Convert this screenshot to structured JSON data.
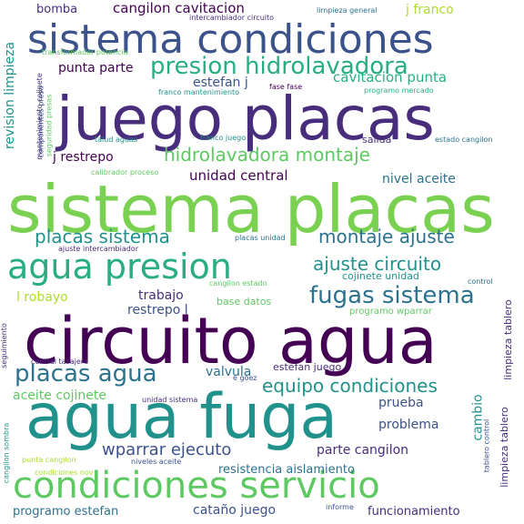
{
  "colors": {
    "dark_purple": "#440154",
    "indigo": "#472d7b",
    "blue": "#3b528b",
    "slate": "#2c728e",
    "teal": "#21918c",
    "green": "#28ae80",
    "lime": "#5ec962",
    "yellow_green": "#addc30",
    "yellow": "#fde725"
  },
  "words": {
    "w01": "circuito agua",
    "w02": "agua fuga",
    "w03": "sistema placas",
    "w04": "juego placas",
    "w05": "sistema condiciones",
    "w06": "condiciones servicio",
    "w07": "agua presion",
    "w08": "presion hidrolavadora",
    "w09": "fugas sistema",
    "w10": "placas agua",
    "w11": "equipo condiciones",
    "w12": "hidrolavadora montaje",
    "w13": "placas sistema",
    "w14": "montaje ajuste",
    "w15": "ajuste circuito",
    "w16": "wparrar ejecuto",
    "w17": "cangilon cavitacion",
    "w18": "cavitacion punta",
    "w19": "unidad central",
    "w20": "punta parte",
    "w21": "estefan j",
    "w22": "j restrepo",
    "w23": "nivel aceite",
    "w24": "j franco",
    "w25": "bomba",
    "w26": "l robayo",
    "w27": "trabajo",
    "w28": "restrepo l",
    "w29": "valvula",
    "w30": "aceite cojinete",
    "w31": "parte cangilon",
    "w32": "resistencia aislamiento",
    "w33": "programo estefan",
    "w34": "cataño juego",
    "w35": "funcionamiento",
    "w36": "prueba",
    "w37": "problema",
    "w38": "cambio",
    "w39": "salida",
    "w40": "revision limpieza",
    "w41": "limpieza tablero",
    "w42": "base datos",
    "w43": "cojinete unidad",
    "w44": "estefan juego",
    "w45": "intercambiador circuito",
    "w46": "limpieza general",
    "w47": "transformador potencia",
    "w48": "franco mantenimiento",
    "w49": "fase fase",
    "w50": "programo mercado",
    "w51": "mantenimiento cojinete",
    "w52": "componentes presa",
    "w53": "seguridad presas",
    "w54": "talud aguas",
    "w55": "franco juego",
    "w56": "estado cangilon",
    "w57": "calibrador proceso",
    "w58": "ajuste intercambiador",
    "w59": "placas unidad",
    "w60": "cangilon estado",
    "w61": "control",
    "w62": "programo wparrar",
    "w63": "seguimiento",
    "w64": "central tasajera",
    "w65": "e goez",
    "w66": "unidad sistema",
    "w67": "tablero control",
    "w68": "cangilon sombra",
    "w69": "punta cangilon",
    "w70": "condiciones nov",
    "w71": "niveles aceite",
    "w72": "informe"
  }
}
